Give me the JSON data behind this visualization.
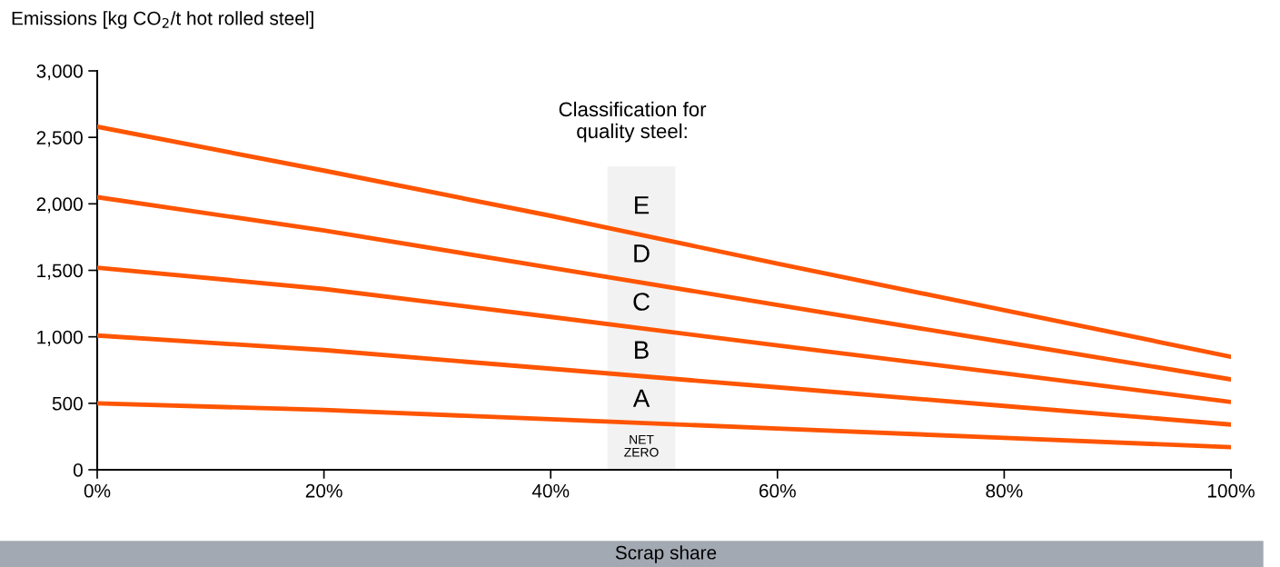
{
  "chart_data": {
    "type": "line",
    "ylabel": "Emissions [kg CO$_{2}$/t hot rolled steel]",
    "xlabel": "Scrap share",
    "x": [
      0,
      20,
      40,
      60,
      80,
      100
    ],
    "series": [
      {
        "color": "#ff5500",
        "values": [
          2580,
          2250,
          1910,
          1550,
          1200,
          850
        ]
      },
      {
        "color": "#ff5500",
        "values": [
          2050,
          1800,
          1520,
          1240,
          960,
          680
        ]
      },
      {
        "color": "#ff5500",
        "values": [
          1520,
          1360,
          1150,
          935,
          725,
          510
        ]
      },
      {
        "color": "#ff5500",
        "values": [
          1010,
          900,
          760,
          620,
          480,
          340
        ]
      },
      {
        "color": "#ff5500",
        "values": [
          500,
          450,
          380,
          310,
          240,
          170
        ]
      }
    ],
    "xlim": [
      0,
      100
    ],
    "xticks": [
      {
        "value": 0,
        "label": "0%"
      },
      {
        "value": 20,
        "label": "20%"
      },
      {
        "value": 40,
        "label": "40%"
      },
      {
        "value": 60,
        "label": "60%"
      },
      {
        "value": 80,
        "label": "80%"
      },
      {
        "value": 100,
        "label": "100%"
      }
    ],
    "ylim": [
      0,
      3000
    ],
    "yticks": [
      {
        "value": 0,
        "label": "0"
      },
      {
        "value": 500,
        "label": "500"
      },
      {
        "value": 1000,
        "label": "1,000"
      },
      {
        "value": 1500,
        "label": "1,500"
      },
      {
        "value": 2000,
        "label": "2,000"
      },
      {
        "value": 2500,
        "label": "2,500"
      },
      {
        "value": 3000,
        "label": "3,000"
      }
    ],
    "bands": [
      {
        "axis": "x",
        "from": 45,
        "to": 51,
        "color": "#f2f2f2"
      }
    ],
    "annotations": [
      "Classification for\nquality steel:",
      "E",
      "D",
      "C",
      "B",
      "A",
      "NET\nZERO"
    ],
    "grid": false,
    "legend": false,
    "marker": "none",
    "line_style": "solid"
  }
}
